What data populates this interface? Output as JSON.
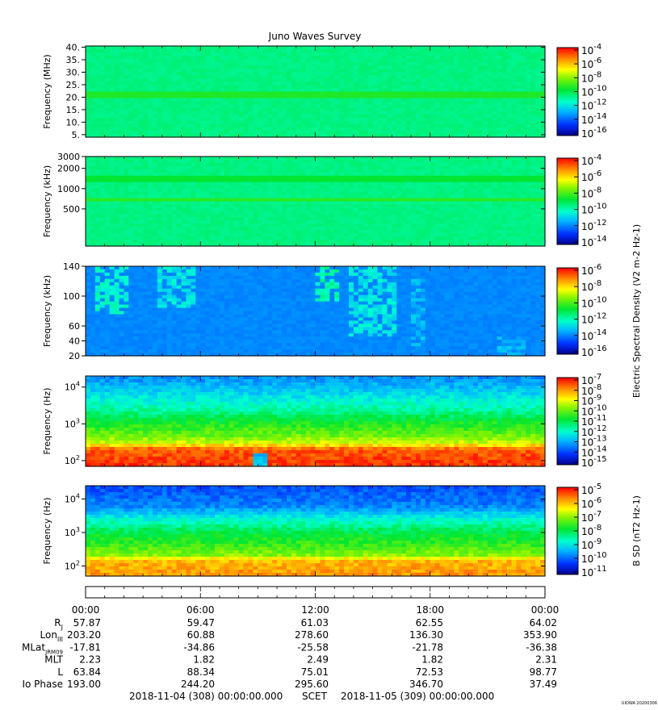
{
  "chart_data": {
    "type": "heatmap",
    "title": "Juno Waves Survey",
    "panels": [
      {
        "id": "hfr-high",
        "ylabel": "Frequency (MHz)",
        "yscale": "linear",
        "ylim": [
          4,
          40.5
        ],
        "yticks": [
          {
            "v": 5,
            "label": "5."
          },
          {
            "v": 10,
            "label": "10."
          },
          {
            "v": 15,
            "label": "15."
          },
          {
            "v": 20,
            "label": "20."
          },
          {
            "v": 25,
            "label": "25."
          },
          {
            "v": 30,
            "label": "30."
          },
          {
            "v": 35,
            "label": "35."
          },
          {
            "v": 40,
            "label": "40."
          }
        ],
        "colorbar": {
          "label": "",
          "ticks": [
            {
              "base": "10",
              "exp": "-4"
            },
            {
              "base": "10",
              "exp": "-6"
            },
            {
              "base": "10",
              "exp": "-8"
            },
            {
              "base": "10",
              "exp": "-10"
            },
            {
              "base": "10",
              "exp": "-12"
            },
            {
              "base": "10",
              "exp": "-14"
            },
            {
              "base": "10",
              "exp": "-16"
            }
          ]
        },
        "background_level": 0.45,
        "bands": [
          {
            "y": 21,
            "level": 0.55
          }
        ]
      },
      {
        "id": "hfr-low",
        "ylabel": "Frequency (kHz)",
        "yscale": "log",
        "ylim": [
          140,
          3000
        ],
        "yticks": [
          {
            "v": 500,
            "label": "500"
          },
          {
            "v": 1000,
            "label": "1000"
          },
          {
            "v": 2000,
            "label": "2000"
          },
          {
            "v": 3000,
            "label": "3000"
          }
        ],
        "colorbar": {
          "label": "",
          "ticks": [
            {
              "base": "10",
              "exp": "-4"
            },
            {
              "base": "10",
              "exp": "-6"
            },
            {
              "base": "10",
              "exp": "-8"
            },
            {
              "base": "10",
              "exp": "-10"
            },
            {
              "base": "10",
              "exp": "-12"
            },
            {
              "base": "10",
              "exp": "-14"
            }
          ]
        },
        "background_level": 0.45,
        "bands": [
          {
            "y": 680,
            "level": 0.56
          },
          {
            "y": 1350,
            "level": 0.52
          }
        ]
      },
      {
        "id": "lfr-high",
        "ylabel": "Frequency (kHz)",
        "yscale": "linear",
        "ylim": [
          20,
          140
        ],
        "yticks": [
          {
            "v": 20,
            "label": "20"
          },
          {
            "v": 40,
            "label": "40"
          },
          {
            "v": 60,
            "label": "60"
          },
          {
            "v": 100,
            "label": "100"
          },
          {
            "v": 140,
            "label": "140"
          }
        ],
        "colorbar": {
          "label": "Electric Spectral Density (V2 m-2 Hz-1)",
          "ticks": [
            {
              "base": "10",
              "exp": "-6"
            },
            {
              "base": "10",
              "exp": "-8"
            },
            {
              "base": "10",
              "exp": "-10"
            },
            {
              "base": "10",
              "exp": "-12"
            },
            {
              "base": "10",
              "exp": "-14"
            },
            {
              "base": "10",
              "exp": "-16"
            }
          ]
        },
        "background_level": 0.22,
        "bursts": [
          {
            "hour": 1.4,
            "width": 1.8,
            "top": 1.0,
            "bottom": 0.45,
            "level": 0.42
          },
          {
            "hour": 4.7,
            "width": 1.9,
            "top": 1.0,
            "bottom": 0.55,
            "level": 0.38
          },
          {
            "hour": 12.6,
            "width": 1.4,
            "top": 1.0,
            "bottom": 0.6,
            "level": 0.45
          },
          {
            "hour": 15.0,
            "width": 2.6,
            "top": 1.0,
            "bottom": 0.2,
            "level": 0.38
          },
          {
            "hour": 17.4,
            "width": 0.9,
            "top": 0.85,
            "bottom": 0.1,
            "level": 0.32
          },
          {
            "hour": 22.3,
            "width": 1.4,
            "top": 0.2,
            "bottom": 0.0,
            "level": 0.32
          }
        ]
      },
      {
        "id": "lfr-low",
        "ylabel": "Frequency (Hz)",
        "yscale": "log",
        "ylim": [
          70,
          20000
        ],
        "yticks": [
          {
            "v": 100,
            "base": "10",
            "exp": "2"
          },
          {
            "v": 1000,
            "base": "10",
            "exp": "3"
          },
          {
            "v": 10000,
            "base": "10",
            "exp": "4"
          }
        ],
        "colorbar": {
          "label": "",
          "ticks": [
            {
              "base": "10",
              "exp": "-7"
            },
            {
              "base": "10",
              "exp": "-8"
            },
            {
              "base": "10",
              "exp": "-9"
            },
            {
              "base": "10",
              "exp": "-10"
            },
            {
              "base": "10",
              "exp": "-11"
            },
            {
              "base": "10",
              "exp": "-12"
            },
            {
              "base": "10",
              "exp": "-13"
            },
            {
              "base": "10",
              "exp": "-14"
            },
            {
              "base": "10",
              "exp": "-15"
            }
          ]
        },
        "profile": [
          {
            "f": 70,
            "level": 0.95
          },
          {
            "f": 200,
            "level": 0.92
          },
          {
            "f": 300,
            "level": 0.72
          },
          {
            "f": 500,
            "level": 0.62
          },
          {
            "f": 1000,
            "level": 0.55
          },
          {
            "f": 2500,
            "level": 0.42
          },
          {
            "f": 6000,
            "level": 0.33
          },
          {
            "f": 20000,
            "level": 0.22
          }
        ],
        "gap_hour": 9.15
      },
      {
        "id": "magnetic",
        "ylabel": "Frequency (Hz)",
        "yscale": "log",
        "ylim": [
          50,
          25000
        ],
        "yticks": [
          {
            "v": 100,
            "base": "10",
            "exp": "2"
          },
          {
            "v": 1000,
            "base": "10",
            "exp": "3"
          },
          {
            "v": 10000,
            "base": "10",
            "exp": "4"
          }
        ],
        "colorbar": {
          "label": "B SD (nT2 Hz-1)",
          "ticks": [
            {
              "base": "10",
              "exp": "-5"
            },
            {
              "base": "10",
              "exp": "-6"
            },
            {
              "base": "10",
              "exp": "-7"
            },
            {
              "base": "10",
              "exp": "-8"
            },
            {
              "base": "10",
              "exp": "-9"
            },
            {
              "base": "10",
              "exp": "-10"
            },
            {
              "base": "10",
              "exp": "-11"
            }
          ]
        },
        "profile": [
          {
            "f": 50,
            "level": 0.86
          },
          {
            "f": 150,
            "level": 0.82
          },
          {
            "f": 200,
            "level": 0.66
          },
          {
            "f": 400,
            "level": 0.58
          },
          {
            "f": 1000,
            "level": 0.5
          },
          {
            "f": 2500,
            "level": 0.37
          },
          {
            "f": 6000,
            "level": 0.22
          },
          {
            "f": 25000,
            "level": 0.15
          }
        ]
      }
    ],
    "x": {
      "range_hours": [
        0,
        24
      ],
      "tick_hours": [
        0,
        6,
        12,
        18,
        24
      ],
      "tick_labels": [
        "00:00",
        "06:00",
        "12:00",
        "18:00",
        "00:00"
      ]
    },
    "ephemeris": [
      {
        "label": "RJ",
        "values": [
          "57.87",
          "59.47",
          "61.03",
          "62.55",
          "64.02"
        ]
      },
      {
        "label": "LonIII",
        "values": [
          "203.20",
          "60.88",
          "278.60",
          "136.30",
          "353.90"
        ]
      },
      {
        "label": "MLatJRM09",
        "values": [
          "-17.81",
          "-34.86",
          "-25.58",
          "-21.78",
          "-36.38"
        ]
      },
      {
        "label": "MLT",
        "values": [
          "2.23",
          "1.82",
          "2.49",
          "1.82",
          "2.31"
        ]
      },
      {
        "label": "L",
        "values": [
          "63.84",
          "88.34",
          "75.01",
          "72.53",
          "98.77"
        ]
      },
      {
        "label": "Io Phase",
        "values": [
          "193.00",
          "244.20",
          "295.60",
          "346.70",
          "37.49"
        ]
      }
    ],
    "time_start": "2018-11-04 (308) 00:00:00.000",
    "time_system": "SCET",
    "time_end": "2018-11-05 (309) 00:00:00.000",
    "footer_tag": "UIOWA 20200306"
  }
}
